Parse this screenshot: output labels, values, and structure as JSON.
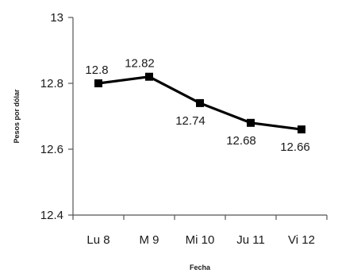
{
  "chart_data": {
    "type": "line",
    "categories": [
      "Lu 8",
      "M 9",
      "Mi 10",
      "Ju 11",
      "Vi 12"
    ],
    "series": [
      {
        "values": [
          12.8,
          12.82,
          12.74,
          12.68,
          12.66
        ],
        "data_labels": [
          "12.8",
          "12.82",
          "12.74",
          "12.68",
          "12.66"
        ],
        "color": "#000000",
        "marker": "square"
      }
    ],
    "y_ticks": [
      "13",
      "12.8",
      "12.6",
      "12.4"
    ],
    "y_tick_values": [
      13,
      12.8,
      12.6,
      12.4
    ],
    "ylim": [
      12.4,
      13
    ],
    "xlabel": "Fecha",
    "ylabel": "Pesos por dólar",
    "grid": false,
    "legend": "none"
  }
}
